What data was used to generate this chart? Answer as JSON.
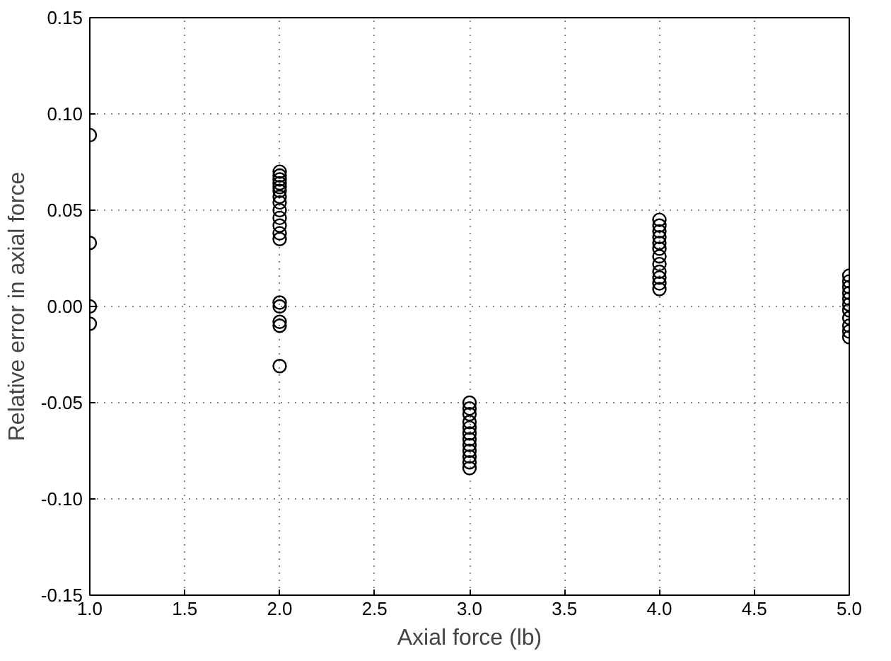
{
  "chart_data": {
    "type": "scatter",
    "xlabel": "Axial force (lb)",
    "ylabel": "Relative error in axial force",
    "x": [
      1,
      1,
      1,
      1,
      2,
      2,
      2,
      2,
      2,
      2,
      2,
      2,
      2,
      2,
      2,
      2,
      2,
      2,
      2,
      2,
      2,
      2,
      3,
      3,
      3,
      3,
      3,
      3,
      3,
      3,
      3,
      3,
      3,
      3,
      4,
      4,
      4,
      4,
      4,
      4,
      4,
      4,
      4,
      4,
      4,
      4,
      5,
      5,
      5,
      5,
      5,
      5,
      5,
      5,
      5,
      5,
      5
    ],
    "series": [
      {
        "color": "#000000",
        "values": [
          0.089,
          0.033,
          0.0,
          -0.009,
          0.07,
          0.068,
          0.066,
          0.064,
          0.062,
          0.06,
          0.057,
          0.054,
          0.05,
          0.046,
          0.042,
          0.038,
          0.035,
          0.002,
          0.0,
          -0.008,
          -0.01,
          -0.031,
          -0.05,
          -0.053,
          -0.056,
          -0.06,
          -0.063,
          -0.066,
          -0.069,
          -0.072,
          -0.075,
          -0.078,
          -0.081,
          -0.084,
          0.045,
          0.042,
          0.039,
          0.036,
          0.033,
          0.03,
          0.026,
          0.022,
          0.018,
          0.015,
          0.012,
          0.009,
          0.016,
          0.013,
          0.01,
          0.007,
          0.004,
          0.001,
          -0.002,
          -0.006,
          -0.01,
          -0.013,
          -0.016
        ]
      }
    ],
    "xlim": [
      1.0,
      5.0
    ],
    "ylim": [
      -0.15,
      0.15
    ],
    "xticks": [
      {
        "value": 1.0,
        "label": "1.0"
      },
      {
        "value": 1.5,
        "label": "1.5"
      },
      {
        "value": 2.0,
        "label": "2.0"
      },
      {
        "value": 2.5,
        "label": "2.5"
      },
      {
        "value": 3.0,
        "label": "3.0"
      },
      {
        "value": 3.5,
        "label": "3.5"
      },
      {
        "value": 4.0,
        "label": "4.0"
      },
      {
        "value": 4.5,
        "label": "4.5"
      },
      {
        "value": 5.0,
        "label": "5.0"
      }
    ],
    "yticks": [
      {
        "value": -0.15,
        "label": "-0.15"
      },
      {
        "value": -0.1,
        "label": "-0.10"
      },
      {
        "value": -0.05,
        "label": "-0.05"
      },
      {
        "value": 0.0,
        "label": "0.00"
      },
      {
        "value": 0.05,
        "label": "0.05"
      },
      {
        "value": 0.1,
        "label": "0.10"
      },
      {
        "value": 0.15,
        "label": "0.15"
      }
    ],
    "grid": true,
    "marker": "circle"
  }
}
